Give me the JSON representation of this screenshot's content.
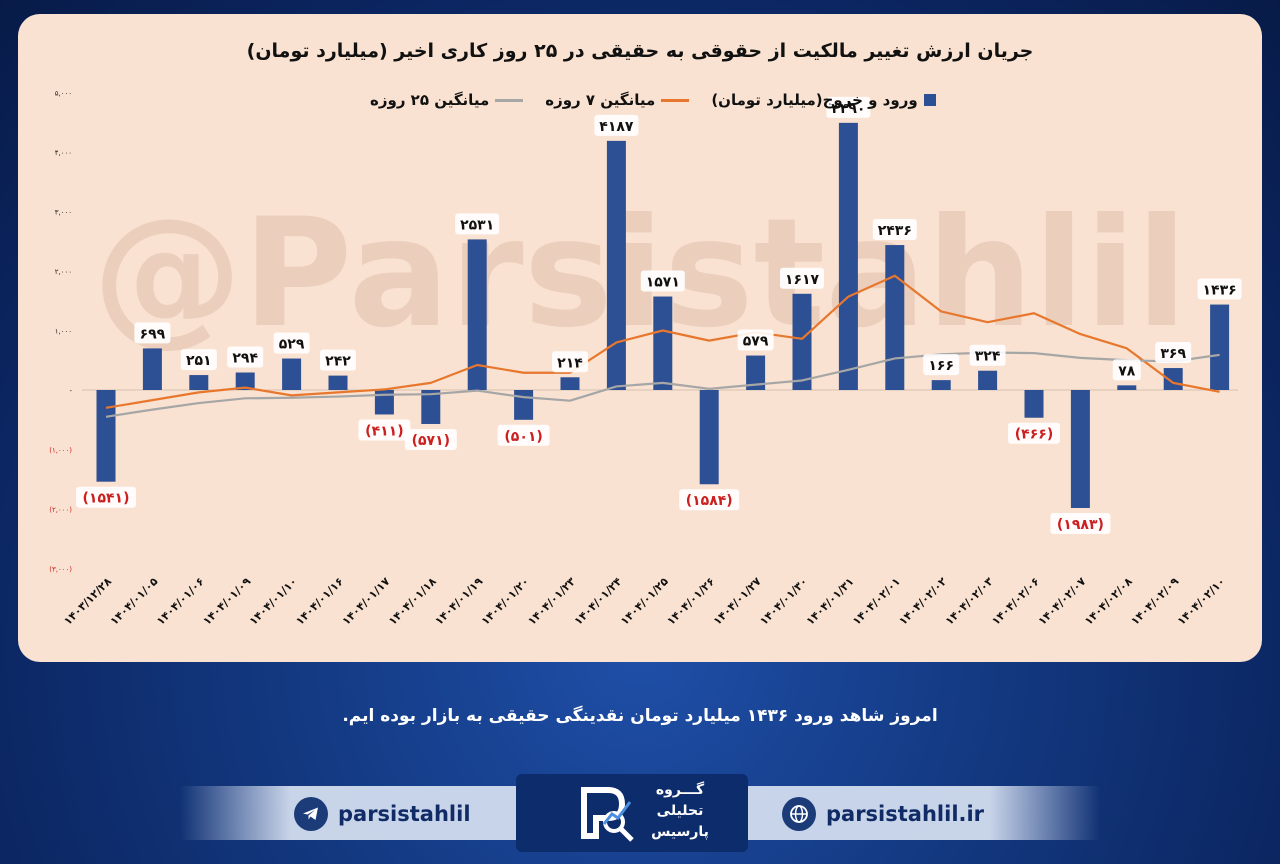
{
  "chart_data": {
    "type": "bar",
    "title": "جریان ارزش تغییر مالکیت از حقوقی به حقیقی در ۲۵ روز کاری اخیر (میلیارد تومان)",
    "categories": [
      "۱۴۰۳/۱۲/۲۸",
      "۱۴۰۴/۰۱/۰۵",
      "۱۴۰۴/۰۱/۰۶",
      "۱۴۰۴/۰۱/۰۹",
      "۱۴۰۴/۰۱/۱۰",
      "۱۴۰۴/۰۱/۱۶",
      "۱۴۰۴/۰۱/۱۷",
      "۱۴۰۴/۰۱/۱۸",
      "۱۴۰۴/۰۱/۱۹",
      "۱۴۰۴/۰۱/۲۰",
      "۱۴۰۴/۰۱/۲۳",
      "۱۴۰۴/۰۱/۲۴",
      "۱۴۰۴/۰۱/۲۵",
      "۱۴۰۴/۰۱/۲۶",
      "۱۴۰۴/۰۱/۲۷",
      "۱۴۰۴/۰۱/۳۰",
      "۱۴۰۴/۰۱/۳۱",
      "۱۴۰۴/۰۲/۰۱",
      "۱۴۰۴/۰۲/۰۲",
      "۱۴۰۴/۰۲/۰۳",
      "۱۴۰۴/۰۲/۰۶",
      "۱۴۰۴/۰۲/۰۷",
      "۱۴۰۴/۰۲/۰۸",
      "۱۴۰۴/۰۲/۰۹",
      "۱۴۰۴/۰۲/۱۰"
    ],
    "series": [
      {
        "name": "ورود و خروج(میلیارد تومان)",
        "kind": "bar",
        "color": "#2d4f93",
        "values": [
          -1541,
          699,
          251,
          294,
          529,
          242,
          -411,
          -571,
          2531,
          -501,
          214,
          4187,
          1571,
          -1584,
          579,
          1617,
          4490,
          2436,
          166,
          324,
          -466,
          -1983,
          78,
          369,
          1436
        ]
      },
      {
        "name": "میانگین ۷ روزه",
        "kind": "line",
        "color": "#e8772e",
        "values": [
          -300,
          -170,
          -40,
          40,
          -90,
          -40,
          10,
          120,
          420,
          290,
          290,
          800,
          1000,
          830,
          970,
          860,
          1570,
          1920,
          1320,
          1140,
          1290,
          940,
          700,
          120,
          -30
        ]
      },
      {
        "name": "میانگین ۲۵ روزه",
        "kind": "line",
        "color": "#a6a6a6",
        "values": [
          -450,
          -330,
          -220,
          -140,
          -130,
          -110,
          -80,
          -70,
          -10,
          -120,
          -180,
          60,
          120,
          20,
          90,
          160,
          340,
          530,
          600,
          630,
          620,
          540,
          500,
          480,
          590
        ]
      }
    ],
    "bar_labels": [
      "(۱۵۴۱)",
      "۶۹۹",
      "۲۵۱",
      "۲۹۴",
      "۵۲۹",
      "۲۴۲",
      "(۴۱۱)",
      "(۵۷۱)",
      "۲۵۳۱",
      "(۵۰۱)",
      "۲۱۴",
      "۴۱۸۷",
      "۱۵۷۱",
      "(۱۵۸۴)",
      "۵۷۹",
      "۱۶۱۷",
      "۴۴۹۰",
      "۲۴۳۶",
      "۱۶۶",
      "۳۲۴",
      "(۴۶۶)",
      "(۱۹۸۳)",
      "۷۸",
      "۳۶۹",
      "۱۴۳۶"
    ],
    "y_ticks": [
      5000,
      4000,
      3000,
      2000,
      1000,
      0,
      -1000,
      -2000,
      -3000
    ],
    "y_tick_labels": [
      "۵,۰۰۰",
      "۴,۰۰۰",
      "۳,۰۰۰",
      "۲,۰۰۰",
      "۱,۰۰۰",
      "-",
      "(۱,۰۰۰)",
      "(۲,۰۰۰)",
      "(۳,۰۰۰)"
    ],
    "ylim": [
      -3000,
      5000
    ],
    "xlabel": "",
    "ylabel": "",
    "grid": false,
    "legend_position": "top-center",
    "negative_label_color": "#cc1f1f",
    "positive_label_color": "#111111"
  },
  "watermark": "@Parsistahlil",
  "caption": "امروز شاهد ورود ۱۴۳۶ میلیارد تومان نقدینگی حقیقی به بازار بوده ایم.",
  "footer": {
    "telegram_handle": "parsistahlil",
    "telegram_icon": "telegram-icon",
    "website": "parsistahlil.ir",
    "website_icon": "globe-icon",
    "logo_lines": [
      "گـــروه",
      "تحلیلی",
      "پارسیس"
    ]
  }
}
